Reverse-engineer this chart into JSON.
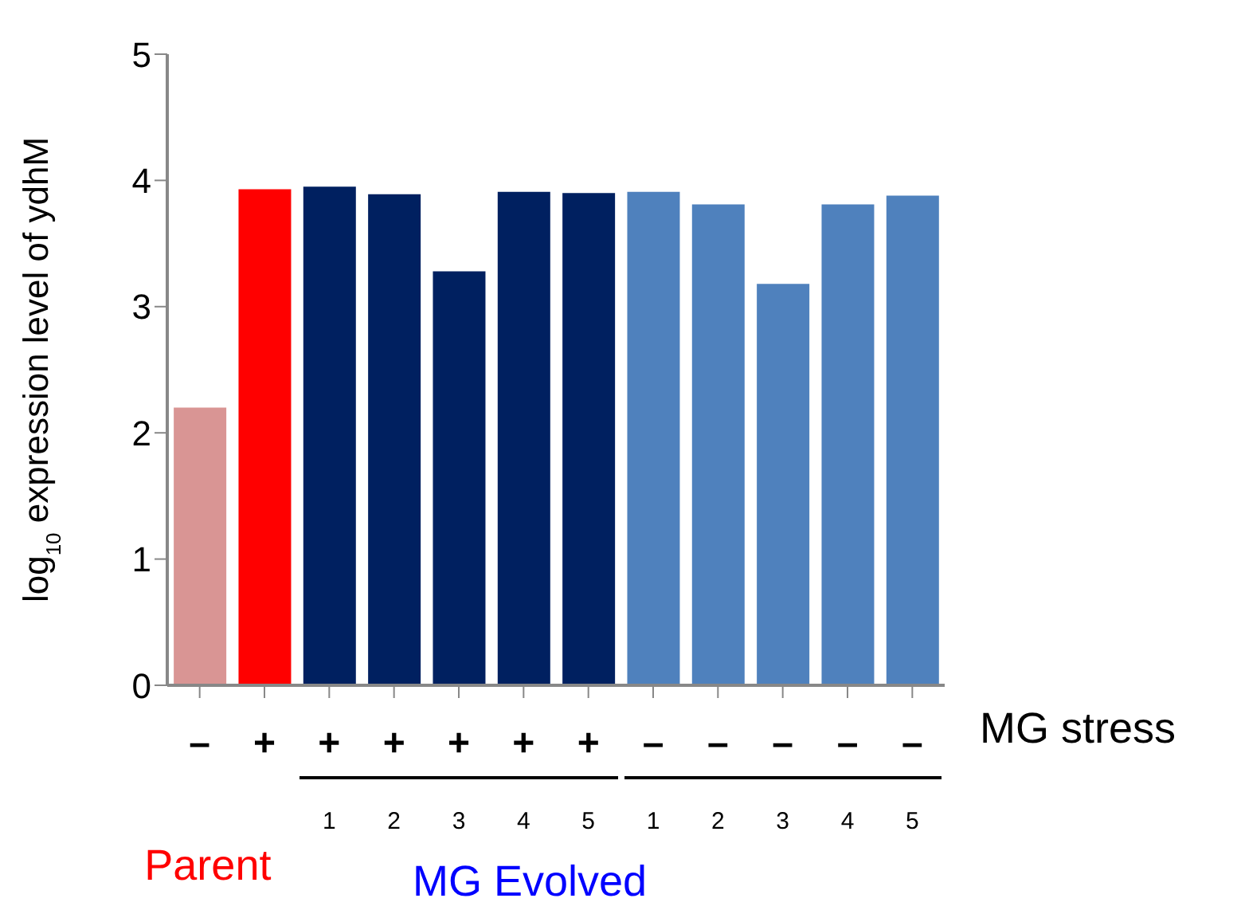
{
  "chart_data": {
    "type": "bar",
    "ylabel": "log$_{10}$ expression level of ydhM",
    "categories": [
      "–",
      "+",
      "+\n1",
      "+\n2",
      "+\n3",
      "+\n4",
      "+\n5",
      "–\n1",
      "–\n2",
      "–\n3",
      "–\n4",
      "–\n5"
    ],
    "values": [
      2.2,
      3.93,
      3.95,
      3.89,
      3.28,
      3.91,
      3.9,
      3.91,
      3.81,
      3.18,
      3.81,
      3.88
    ],
    "colors": [
      "#d99594",
      "#ff0000",
      "#002060",
      "#002060",
      "#002060",
      "#002060",
      "#002060",
      "#4f81bd",
      "#4f81bd",
      "#4f81bd",
      "#4f81bd",
      "#4f81bd"
    ],
    "ylim": [
      0,
      5
    ],
    "yticks": [
      0,
      1,
      2,
      3,
      4,
      5
    ],
    "annotations": [
      "MG stress",
      "Parent",
      "MG Evolved"
    ]
  }
}
